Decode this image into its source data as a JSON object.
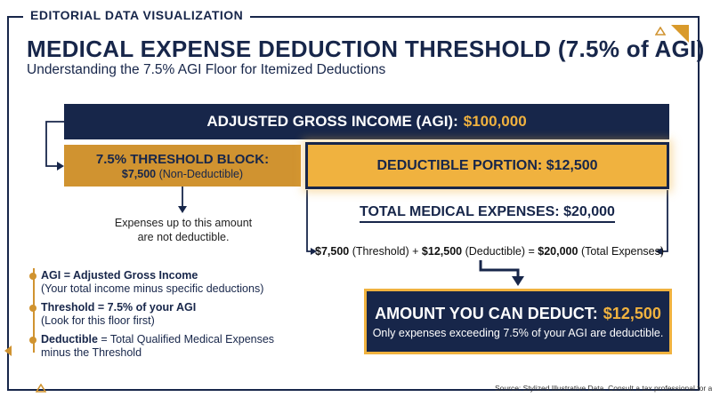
{
  "tag": "EDITORIAL DATA VISUALIZATION",
  "title": "MEDICAL EXPENSE DEDUCTION THRESHOLD (7.5% of AGI)",
  "subtitle": "Understanding the 7.5% AGI Floor for Itemized Deductions",
  "agi": {
    "label": "ADJUSTED GROSS INCOME (AGI):",
    "value": "$100,000"
  },
  "threshold_block": {
    "title": "7.5% THRESHOLD BLOCK:",
    "amount": "$7,500",
    "suffix": "(Non-Deductible)"
  },
  "deductible_block": {
    "label": "DEDUCTIBLE PORTION: $12,500"
  },
  "threshold_note": {
    "line1": "Expenses up to this amount",
    "line2": "are not deductible."
  },
  "total": {
    "label": "TOTAL MEDICAL EXPENSES: $20,000"
  },
  "equation": {
    "a_amount": "$7,500",
    "a_label": "(Threshold)",
    "plus": "+",
    "b_amount": "$12,500",
    "b_label": "(Deductible)",
    "equals": "=",
    "c_amount": "$20,000",
    "c_label": "(Total Expenses)"
  },
  "legend": [
    {
      "term": "AGI = Adjusted Gross Income",
      "detail": "(Your total income minus specific deductions)"
    },
    {
      "term": "Threshold = 7.5% of your AGI",
      "detail": "(Look for this floor first)"
    },
    {
      "term": "Deductible",
      "rest": " = Total Qualified Medical Expenses",
      "detail": "minus the Threshold"
    }
  ],
  "result": {
    "title": "AMOUNT YOU CAN DEDUCT:",
    "value": "$12,500",
    "sub": "Only expenses exceeding 7.5% of your AGI are deductible."
  },
  "source": "Source: Stylized Illustrative Data. Consult a tax professional for advice.",
  "colors": {
    "navy": "#17264a",
    "gold": "#d09330",
    "bright_gold": "#f0b23f"
  }
}
